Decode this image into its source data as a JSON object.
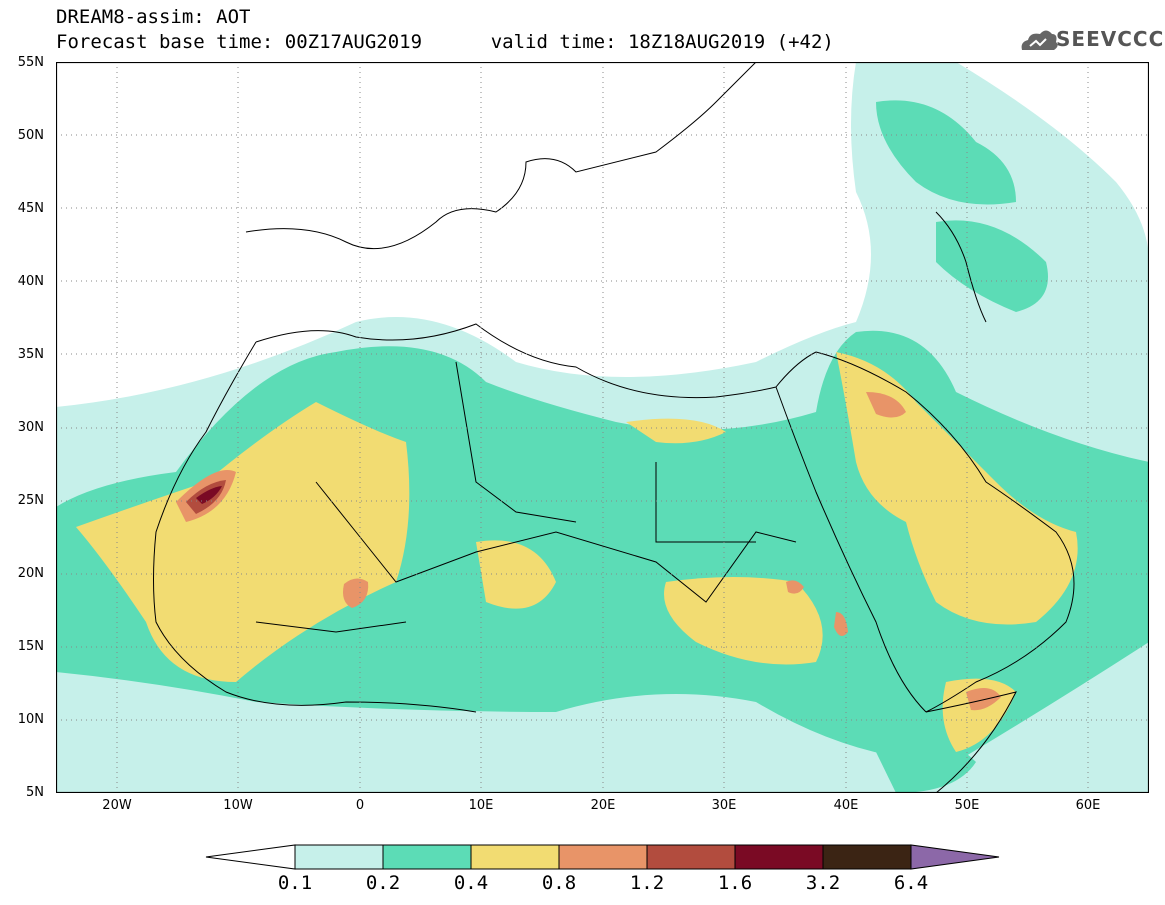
{
  "header": {
    "line1": "DREAM8-assim: AOT",
    "line2_base": "Forecast base time: 00Z17AUG2019",
    "line2_valid": "valid time: 18Z18AUG2019 (+42)"
  },
  "logo": {
    "text": "SEEVCCC",
    "icon": "cloud-icon"
  },
  "map": {
    "lat_labels": [
      "55N",
      "50N",
      "45N",
      "40N",
      "35N",
      "30N",
      "25N",
      "20N",
      "15N",
      "10N",
      "5N"
    ],
    "lon_labels": [
      "20W",
      "10W",
      "0",
      "10E",
      "20E",
      "30E",
      "40E",
      "50E",
      "60E"
    ],
    "lat_range": [
      5,
      55
    ],
    "lon_range": [
      -25,
      65
    ],
    "grid": "dotted"
  },
  "legend": {
    "labels": [
      "0.1",
      "0.2",
      "0.4",
      "0.8",
      "1.2",
      "1.6",
      "3.2",
      "6.4"
    ],
    "colors": {
      "c1": "#c6f0ea",
      "c2": "#5cdcb6",
      "c3": "#f2dc72",
      "c4": "#e89468",
      "c5": "#b24c3e",
      "c6": "#7a0a24",
      "c7": "#3b2414",
      "c8": "#8c68a8"
    }
  }
}
